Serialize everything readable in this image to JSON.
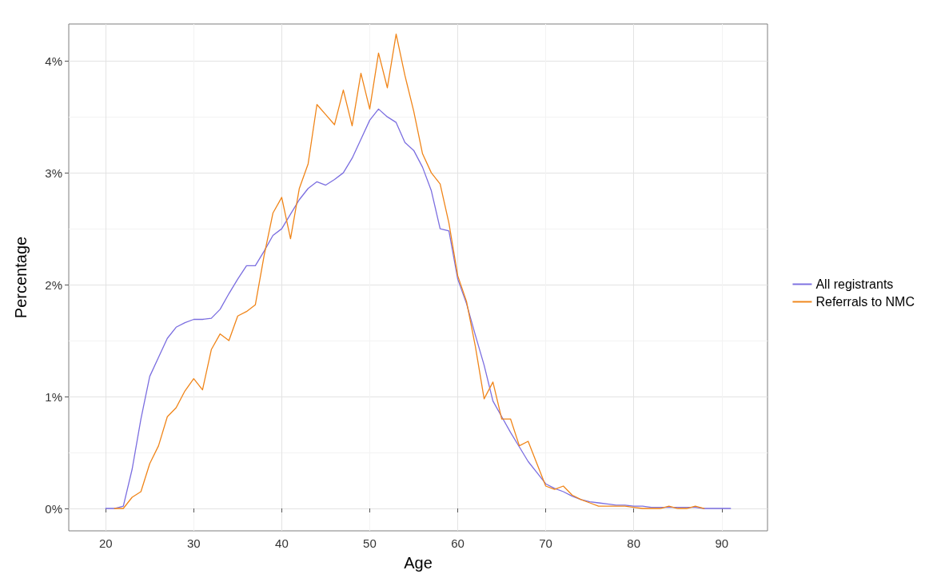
{
  "chart_data": {
    "type": "line",
    "xlabel": "Age",
    "ylabel": "Percentage",
    "xlim": [
      15.8,
      95.2
    ],
    "ylim": [
      -0.2,
      4.33
    ],
    "xticks": [
      20,
      30,
      40,
      50,
      60,
      70,
      80,
      90
    ],
    "yticks": [
      {
        "value": 0,
        "label": "0%"
      },
      {
        "value": 1,
        "label": "1%"
      },
      {
        "value": 2,
        "label": "2%"
      },
      {
        "value": 3,
        "label": "3%"
      },
      {
        "value": 4,
        "label": "4%"
      }
    ],
    "grid": true,
    "legend": "right",
    "marker": "none",
    "line_style": "solid",
    "series": [
      {
        "name": "All registrants",
        "color": "#7b6ee0",
        "x": [
          20,
          21,
          22,
          23,
          24,
          25,
          26,
          27,
          28,
          29,
          30,
          31,
          32,
          33,
          34,
          35,
          36,
          37,
          38,
          39,
          40,
          41,
          42,
          43,
          44,
          45,
          46,
          47,
          48,
          49,
          50,
          51,
          52,
          53,
          54,
          55,
          56,
          57,
          58,
          59,
          60,
          61,
          62,
          63,
          64,
          65,
          66,
          67,
          68,
          69,
          70,
          71,
          72,
          73,
          74,
          75,
          76,
          77,
          78,
          79,
          80,
          81,
          82,
          83,
          84,
          85,
          86,
          87,
          88,
          89,
          90,
          91
        ],
        "values": [
          0,
          0,
          0.02,
          0.35,
          0.8,
          1.18,
          1.35,
          1.52,
          1.62,
          1.66,
          1.69,
          1.69,
          1.7,
          1.78,
          1.92,
          2.05,
          2.17,
          2.17,
          2.3,
          2.44,
          2.5,
          2.63,
          2.76,
          2.86,
          2.92,
          2.89,
          2.94,
          3.0,
          3.13,
          3.3,
          3.47,
          3.57,
          3.5,
          3.45,
          3.27,
          3.2,
          3.05,
          2.84,
          2.5,
          2.48,
          2.05,
          1.83,
          1.55,
          1.28,
          0.96,
          0.82,
          0.68,
          0.55,
          0.42,
          0.32,
          0.22,
          0.18,
          0.15,
          0.11,
          0.08,
          0.06,
          0.05,
          0.04,
          0.03,
          0.03,
          0.02,
          0.02,
          0.01,
          0.01,
          0.01,
          0.01,
          0.01,
          0.01,
          0,
          0,
          0,
          0
        ]
      },
      {
        "name": "Referrals to NMC",
        "color": "#f08519",
        "x": [
          21,
          22,
          23,
          24,
          25,
          26,
          27,
          28,
          29,
          30,
          31,
          32,
          33,
          34,
          35,
          36,
          37,
          38,
          39,
          40,
          41,
          42,
          43,
          44,
          45,
          46,
          47,
          48,
          49,
          50,
          51,
          52,
          53,
          54,
          55,
          56,
          57,
          58,
          59,
          60,
          61,
          62,
          63,
          64,
          65,
          66,
          67,
          68,
          69,
          70,
          71,
          72,
          73,
          74,
          75,
          76,
          77,
          78,
          79,
          80,
          81,
          82,
          83,
          84,
          85,
          86,
          87,
          88
        ],
        "values": [
          0,
          0,
          0.1,
          0.15,
          0.4,
          0.56,
          0.82,
          0.9,
          1.05,
          1.16,
          1.06,
          1.42,
          1.56,
          1.5,
          1.72,
          1.76,
          1.82,
          2.26,
          2.64,
          2.78,
          2.41,
          2.86,
          3.08,
          3.61,
          3.52,
          3.43,
          3.74,
          3.42,
          3.89,
          3.57,
          4.07,
          3.76,
          4.24,
          3.87,
          3.55,
          3.17,
          3.0,
          2.9,
          2.55,
          2.08,
          1.85,
          1.45,
          0.98,
          1.13,
          0.8,
          0.8,
          0.56,
          0.6,
          0.4,
          0.2,
          0.17,
          0.2,
          0.12,
          0.08,
          0.05,
          0.02,
          0.02,
          0.02,
          0.02,
          0.01,
          0,
          0,
          0,
          0.02,
          0,
          0,
          0.02,
          0
        ]
      }
    ]
  }
}
